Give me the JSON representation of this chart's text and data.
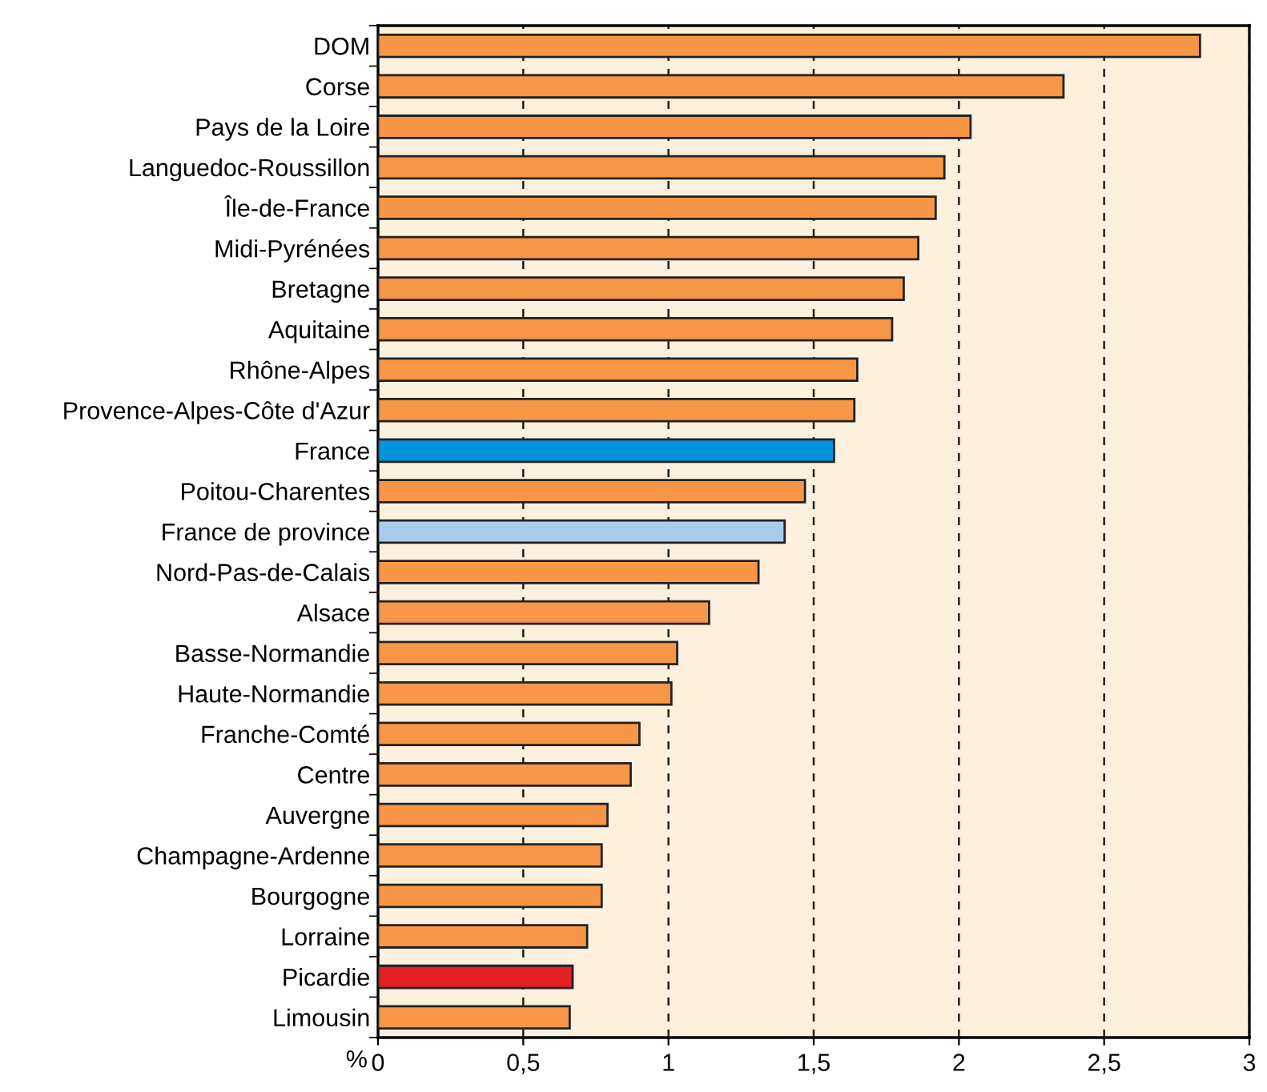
{
  "chart_data": {
    "type": "bar",
    "orientation": "horizontal",
    "xlabel": "%",
    "categories": [
      "DOM",
      "Corse",
      "Pays de la Loire",
      "Languedoc-Roussillon",
      "Île-de-France",
      "Midi-Pyrénées",
      "Bretagne",
      "Aquitaine",
      "Rhône-Alpes",
      "Provence-Alpes-Côte d'Azur",
      "France",
      "Poitou-Charentes",
      "France de province",
      "Nord-Pas-de-Calais",
      "Alsace",
      "Basse-Normandie",
      "Haute-Normandie",
      "Franche-Comté",
      "Centre",
      "Auvergne",
      "Champagne-Ardenne",
      "Bourgogne",
      "Lorraine",
      "Picardie",
      "Limousin"
    ],
    "values": [
      2.83,
      2.36,
      2.04,
      1.95,
      1.92,
      1.86,
      1.81,
      1.77,
      1.65,
      1.64,
      1.57,
      1.47,
      1.4,
      1.31,
      1.14,
      1.03,
      1.01,
      0.9,
      0.87,
      0.79,
      0.77,
      0.77,
      0.72,
      0.67,
      0.66
    ],
    "colors": [
      "#f79646",
      "#f79646",
      "#f79646",
      "#f79646",
      "#f79646",
      "#f79646",
      "#f79646",
      "#f79646",
      "#f79646",
      "#f79646",
      "#0095d9",
      "#f79646",
      "#a9cbee",
      "#f79646",
      "#f79646",
      "#f79646",
      "#f79646",
      "#f79646",
      "#f79646",
      "#f79646",
      "#f79646",
      "#f79646",
      "#f79646",
      "#e31e24",
      "#f79646"
    ],
    "xlim": [
      0,
      3
    ],
    "xticks": [
      0,
      {
        "value": 0.5,
        "label": "0,5"
      },
      1,
      {
        "value": 1.5,
        "label": "1,5"
      },
      2,
      {
        "value": 2.5,
        "label": "2,5"
      },
      3
    ],
    "grid": "x"
  }
}
